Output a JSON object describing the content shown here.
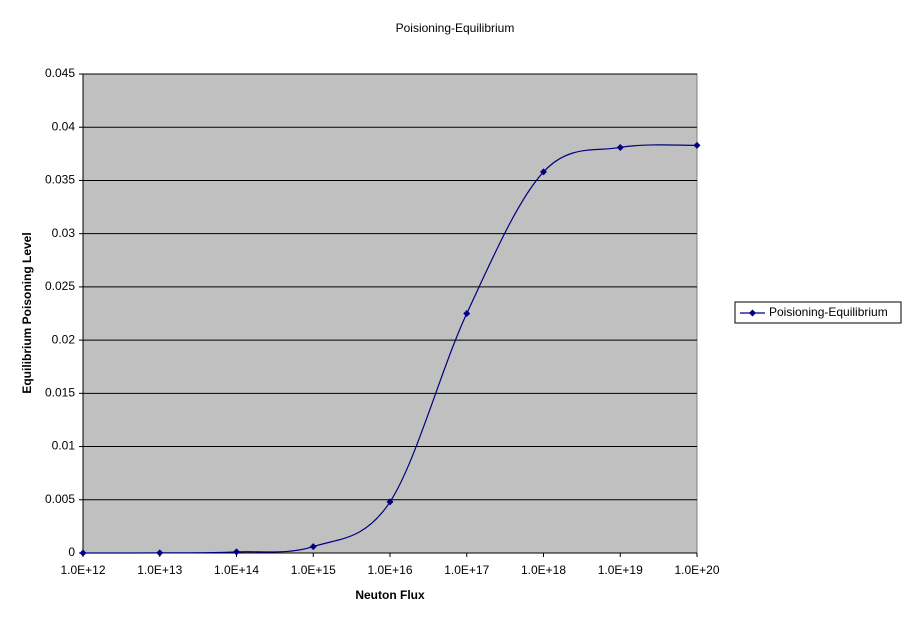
{
  "chart_data": {
    "type": "line",
    "title": "Poisioning-Equilibrium",
    "x_label": "Neuton Flux",
    "y_label": "Equilibrium Poisoning Level",
    "categories": [
      "1.0E+12",
      "1.0E+13",
      "1.0E+14",
      "1.0E+15",
      "1.0E+16",
      "1.0E+17",
      "1.0E+18",
      "1.0E+19",
      "1.0E+20"
    ],
    "series": [
      {
        "name": "Poisioning-Equilibrium",
        "color": "#000080",
        "values": [
          0,
          1e-05,
          0.0001,
          0.0006,
          0.0048,
          0.0225,
          0.0358,
          0.0381,
          0.0383
        ]
      }
    ],
    "ylim": [
      0,
      0.045
    ],
    "yticks": [
      0,
      0.005,
      0.01,
      0.015,
      0.02,
      0.025,
      0.03,
      0.035,
      0.04,
      0.045
    ],
    "grid": true,
    "plot_background": "#c0c0c0",
    "legend": "right",
    "smooth": true
  }
}
